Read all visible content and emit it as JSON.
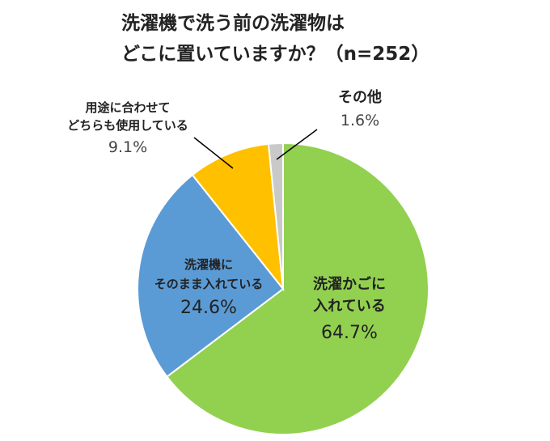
{
  "chart_data": {
    "type": "pie",
    "title_lines": [
      "洗濯機で洗う前の洗濯物は",
      "どこに置いていますか？（n=252）"
    ],
    "slices": [
      {
        "label_lines": [
          "洗濯かごに",
          "入れている"
        ],
        "value": 64.7,
        "value_label": "64.7%",
        "color": "#92D050"
      },
      {
        "label_lines": [
          "洗濯機に",
          "そのまま入れている"
        ],
        "value": 24.6,
        "value_label": "24.6%",
        "color": "#5B9BD5"
      },
      {
        "label_lines": [
          "用途に合わせて",
          "どちらも使用している"
        ],
        "value": 9.1,
        "value_label": "9.1%",
        "color": "#FFC000"
      },
      {
        "label_lines": [
          "その他"
        ],
        "value": 1.6,
        "value_label": "1.6%",
        "color": "#C9C9C9"
      }
    ],
    "legend": "none"
  }
}
